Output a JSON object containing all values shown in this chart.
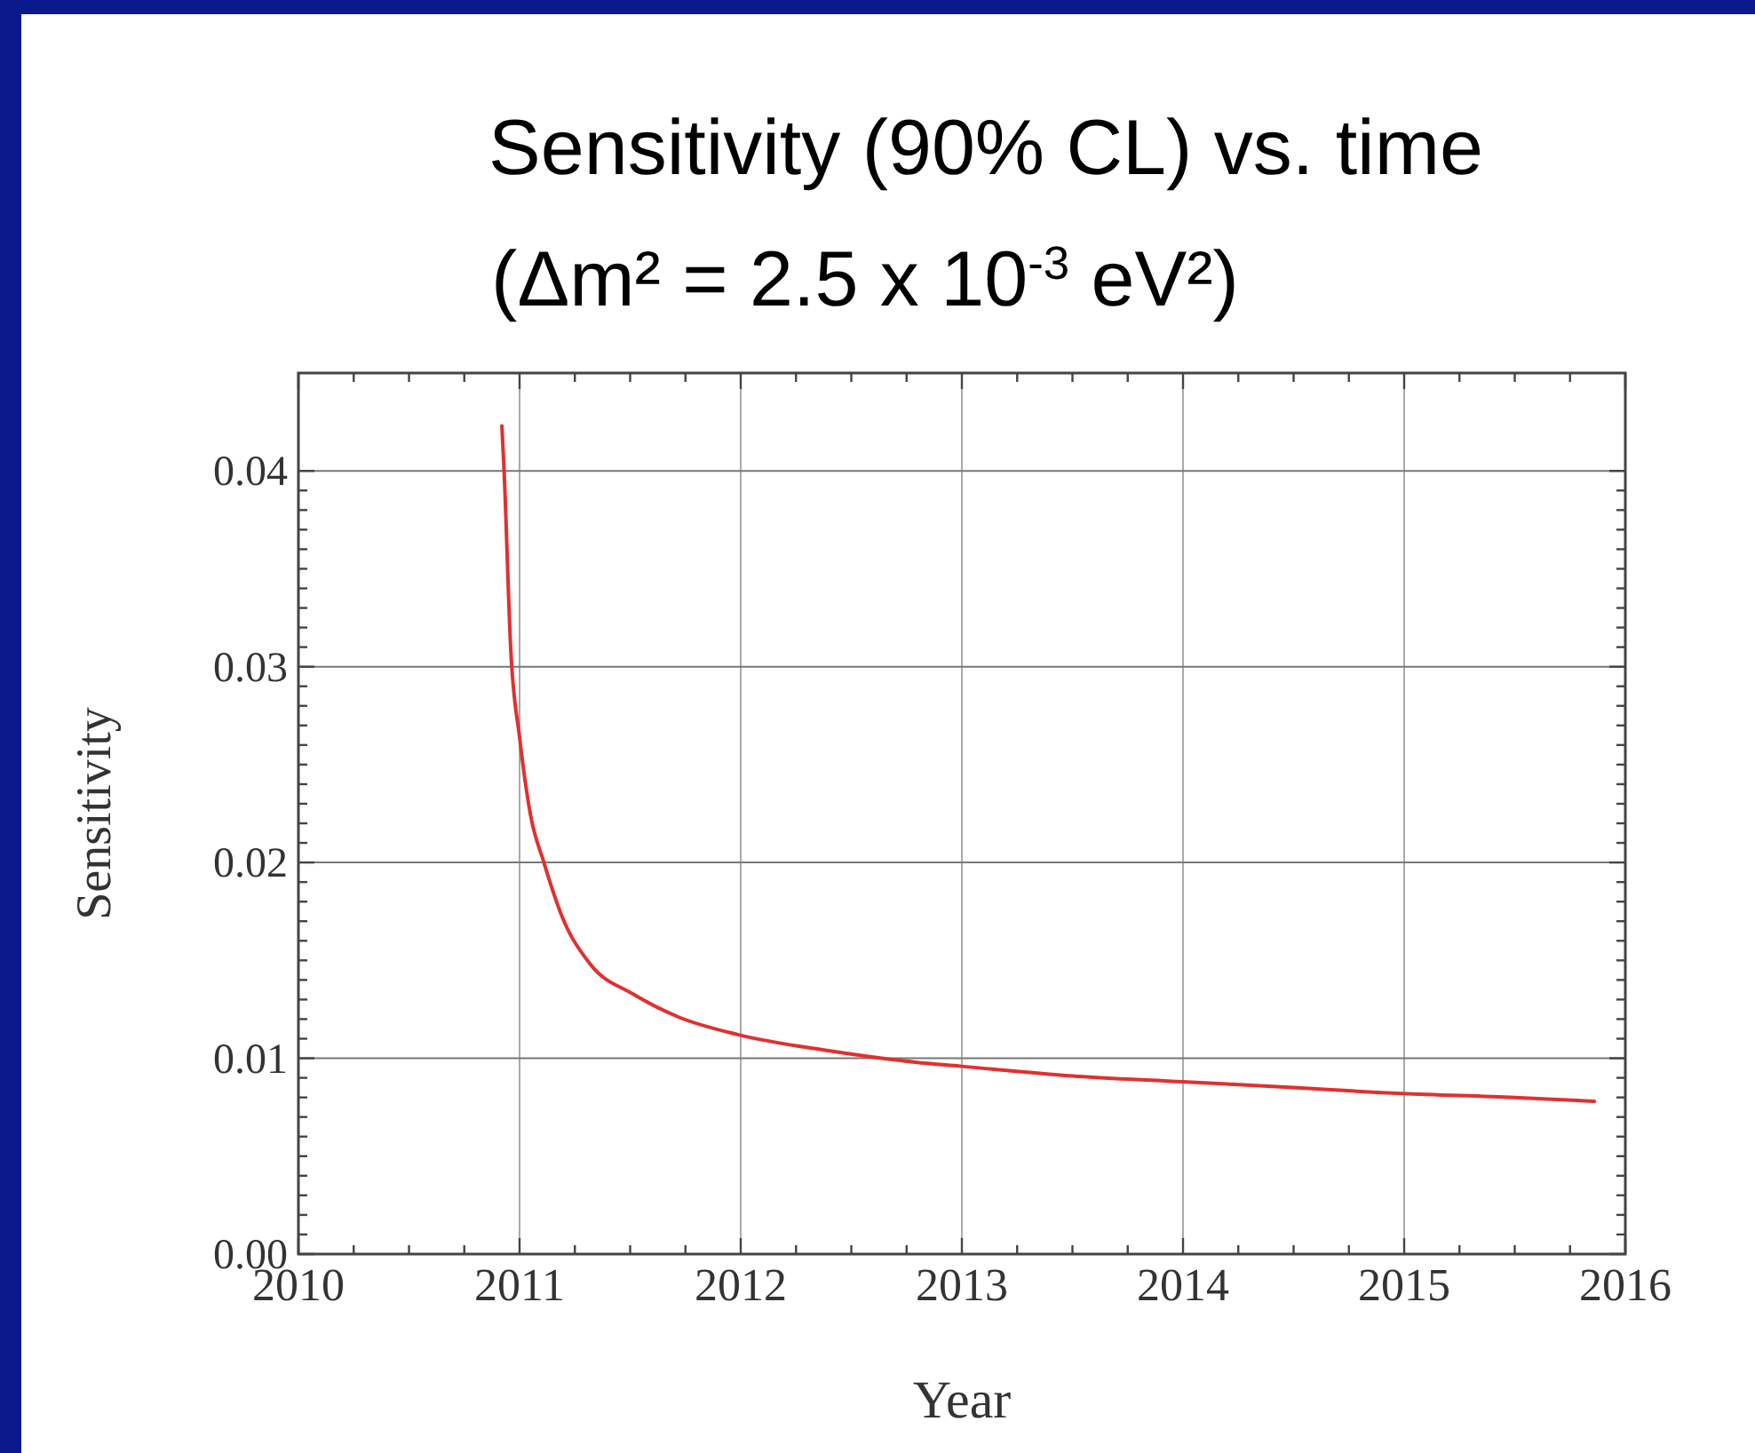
{
  "chart_data": {
    "type": "line",
    "title": "Sensitivity (90% CL) vs. time",
    "subtitle": "(Δm² = 2.5 x 10$^{-3}$ eV²)",
    "xlabel": "Year",
    "ylabel": "Sensitivity",
    "xlim": [
      2010,
      2016
    ],
    "xticks": [
      2010,
      2011,
      2012,
      2013,
      2014,
      2015,
      2016
    ],
    "ylim": [
      0,
      0.045
    ],
    "yticks": [
      {
        "value": 0,
        "label": "0.00"
      },
      0.01,
      0.02,
      0.03,
      0.04
    ],
    "grid": true,
    "marker": "none",
    "line_style": "solid",
    "series": [
      {
        "color": "#e03030",
        "x": [
          2010.92,
          2010.93,
          2010.96,
          2011.0,
          2011.05,
          2011.11,
          2011.19,
          2011.32,
          2011.51,
          2011.72,
          2011.99,
          2012.39,
          2012.79,
          2012.99,
          2013.5,
          2014.0,
          2014.5,
          2014.99,
          2015.5,
          2015.86
        ],
        "values": [
          0.0423,
          0.04,
          0.0309,
          0.0264,
          0.0224,
          0.02,
          0.0173,
          0.0148,
          0.0133,
          0.0121,
          0.0112,
          0.0104,
          0.0098,
          0.0096,
          0.0091,
          0.0088,
          0.0085,
          0.0082,
          0.008,
          0.0078
        ]
      }
    ]
  }
}
